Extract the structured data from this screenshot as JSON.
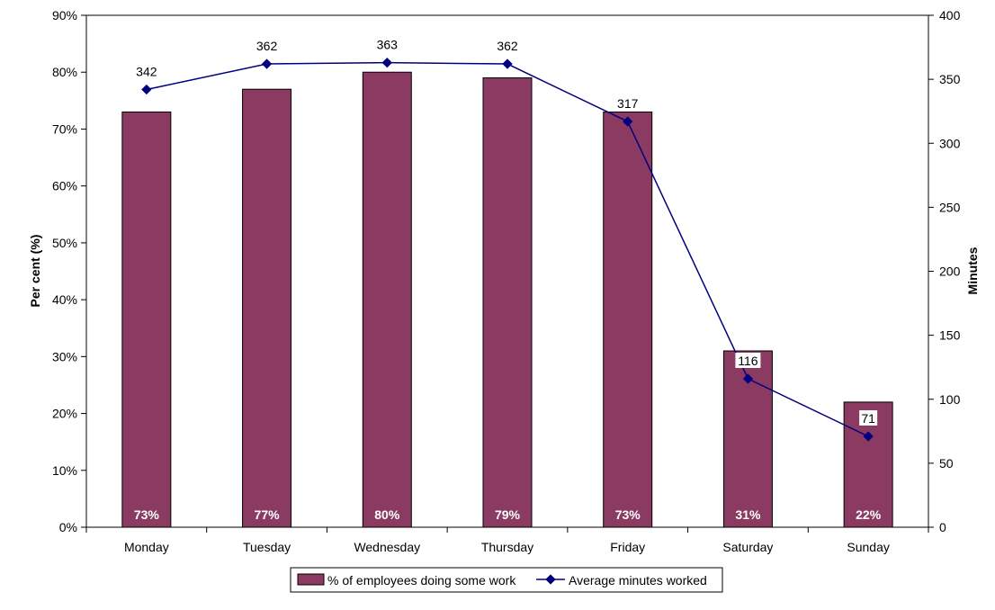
{
  "chart_data": {
    "type": "bar",
    "categories": [
      "Monday",
      "Tuesday",
      "Wednesday",
      "Thursday",
      "Friday",
      "Saturday",
      "Sunday"
    ],
    "series": [
      {
        "name": "% of employees doing some work",
        "type": "bar",
        "axis": "left",
        "values": [
          73,
          77,
          80,
          79,
          73,
          31,
          22
        ],
        "labels": [
          "73%",
          "77%",
          "80%",
          "79%",
          "73%",
          "31%",
          "22%"
        ],
        "color": "#8B3A62"
      },
      {
        "name": "Average minutes worked",
        "type": "line",
        "axis": "right",
        "values": [
          342,
          362,
          363,
          362,
          317,
          116,
          71
        ],
        "labels": [
          "342",
          "362",
          "363",
          "362",
          "317",
          "116",
          "71"
        ],
        "color": "#000080"
      }
    ],
    "ylabel": "Per cent (%)",
    "y2label": "Minutes",
    "ylim": [
      0,
      90
    ],
    "y2lim": [
      0,
      400
    ],
    "yticks": [
      "0%",
      "10%",
      "20%",
      "30%",
      "40%",
      "50%",
      "60%",
      "70%",
      "80%",
      "90%"
    ],
    "y2ticks": [
      "0",
      "50",
      "100",
      "150",
      "200",
      "250",
      "300",
      "350",
      "400"
    ],
    "grid": false,
    "legend_position": "bottom-center"
  }
}
